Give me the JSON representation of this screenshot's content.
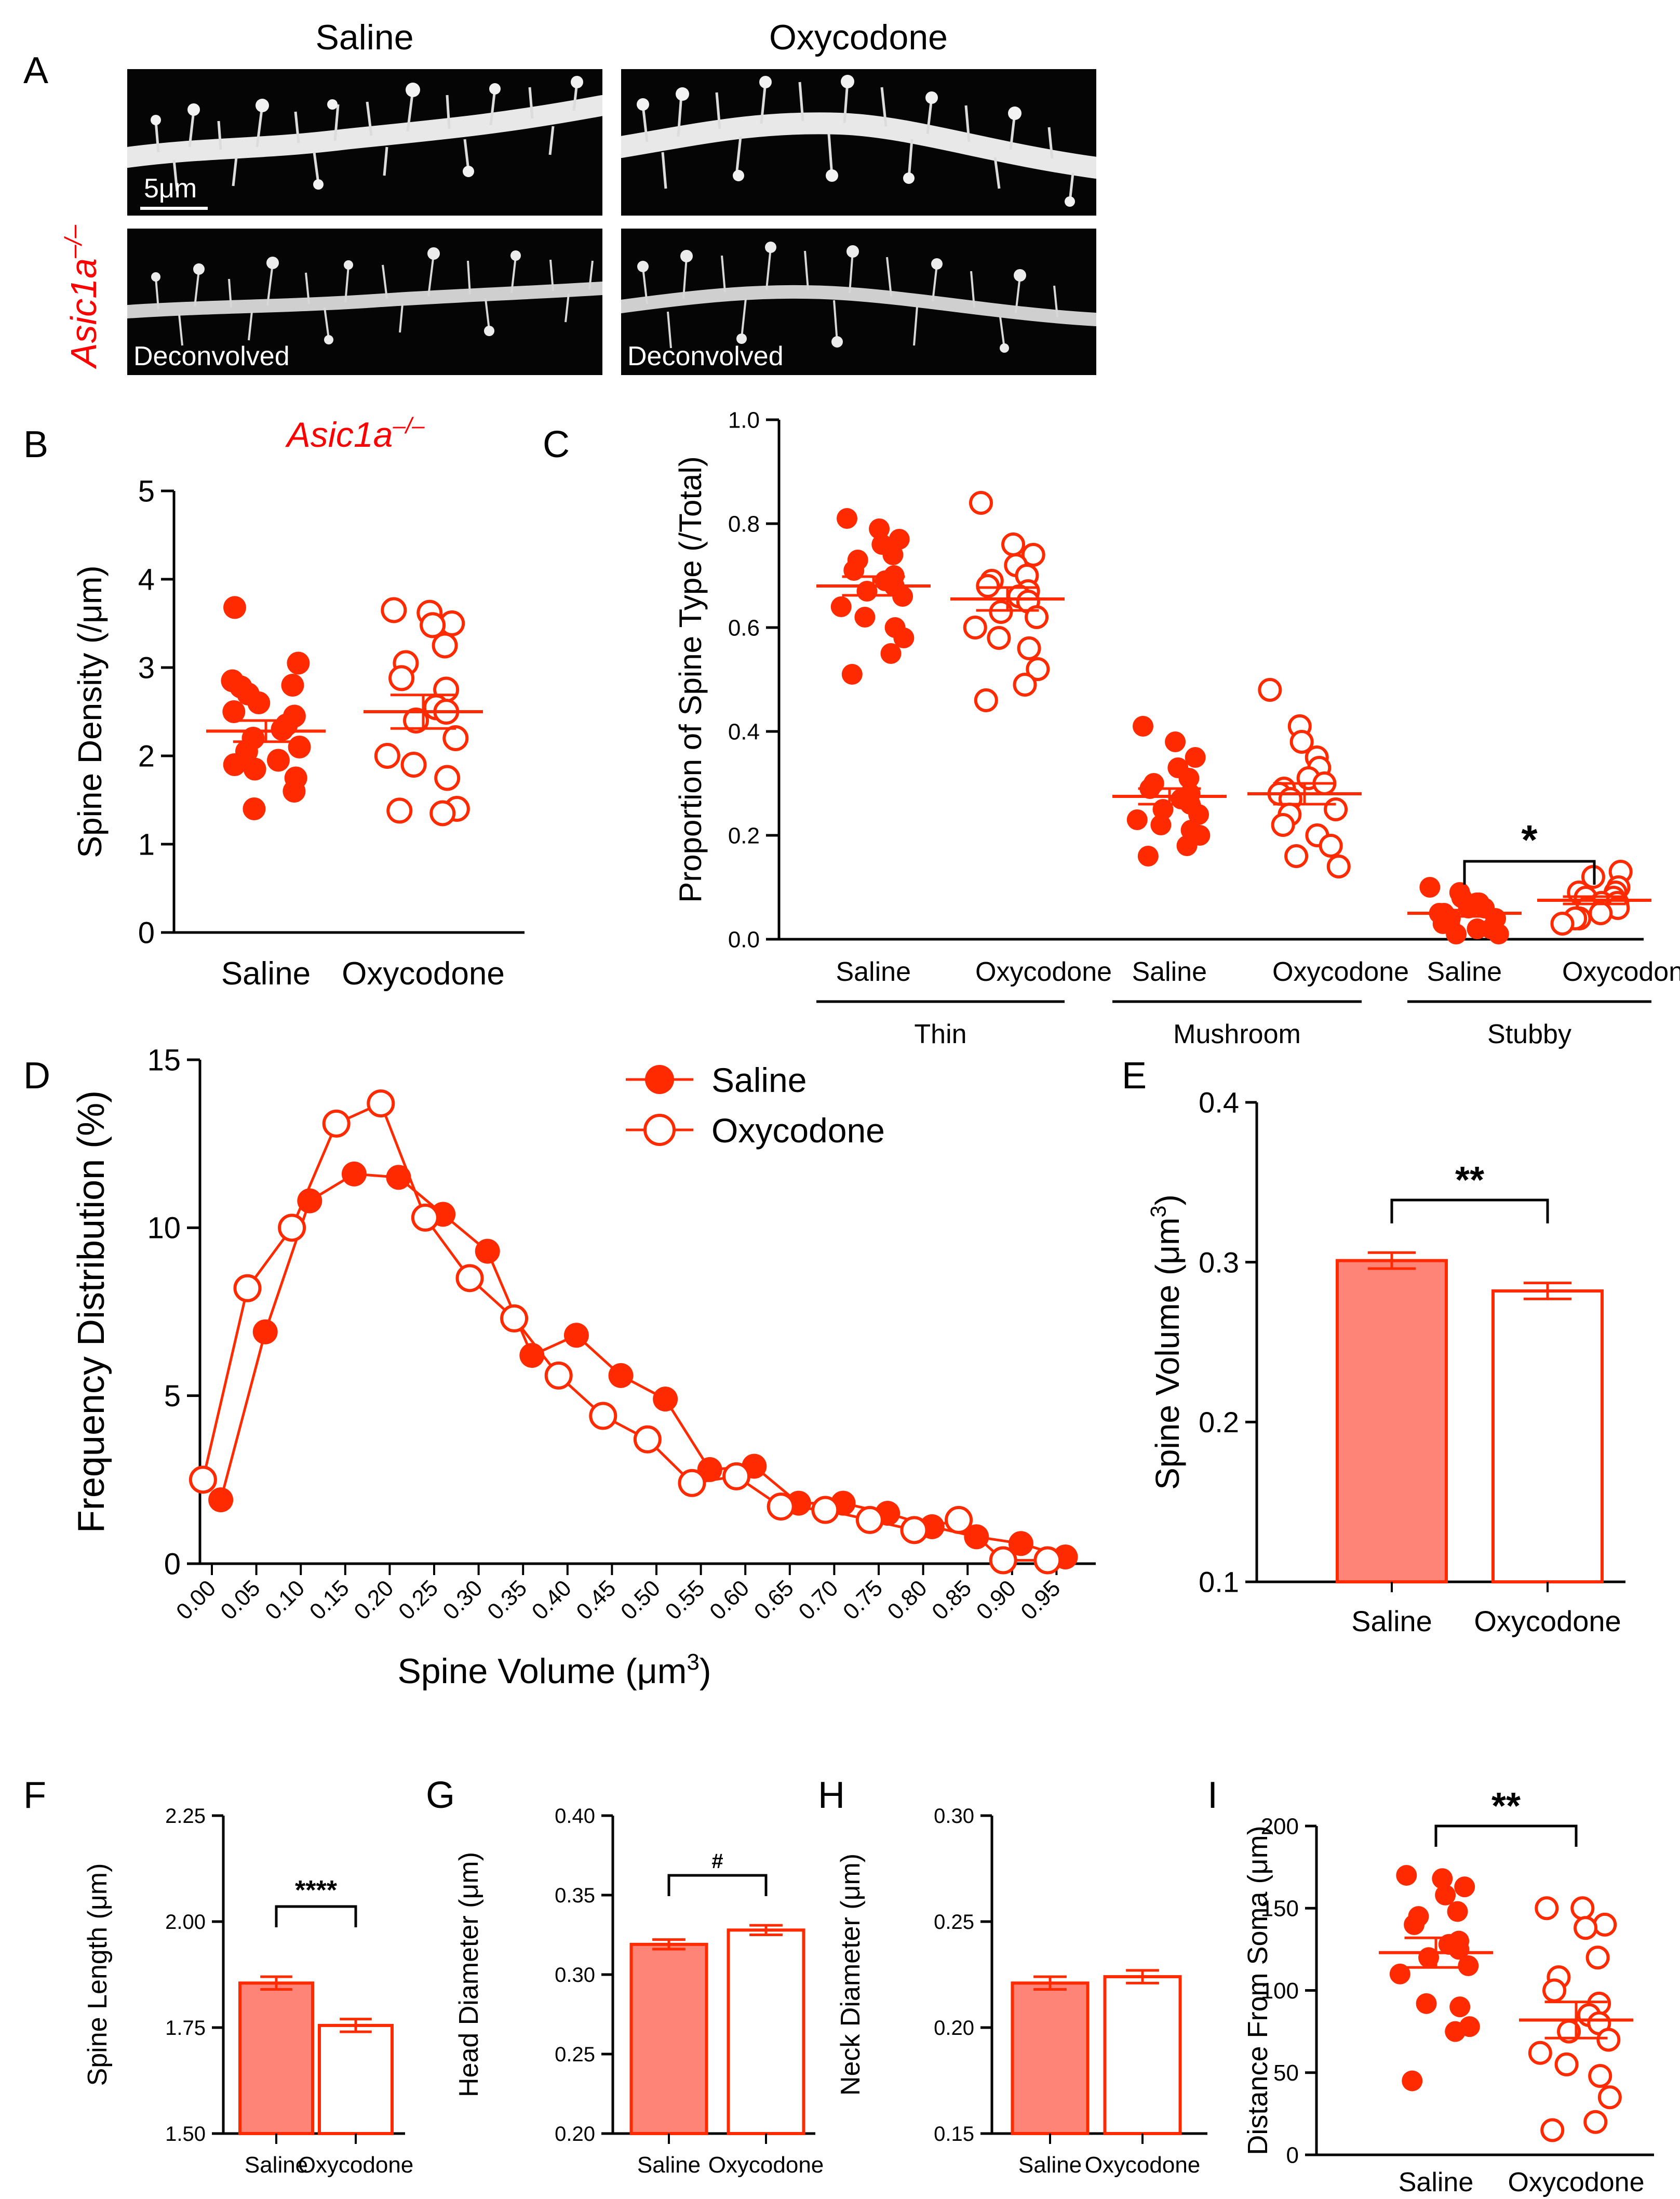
{
  "panel_letters": [
    "A",
    "B",
    "C",
    "D",
    "E",
    "F",
    "G",
    "H",
    "I"
  ],
  "colors": {
    "accent": "#ff2a00",
    "bar_fill": "#ff8478",
    "genotype": "#ff0000",
    "axis": "#000000"
  },
  "panelA": {
    "col1": "Saline",
    "col2": "Oxycodone",
    "genotype": "Asic1a",
    "genotype_sup": "–/–",
    "scale_bar": "5μm",
    "deconvolved": "Deconvolved"
  },
  "panelB_genotype": {
    "name": "Asic1a",
    "sup": "–/–"
  },
  "chart_data": [
    {
      "id": "B",
      "type": "scatter",
      "ylabel": "Spine Density (/μm)",
      "ylim": [
        0,
        5
      ],
      "yticks": [
        "0",
        "1",
        "2",
        "3",
        "4",
        "5"
      ],
      "categories": [
        "Saline",
        "Oxycodone"
      ],
      "series": [
        {
          "name": "Saline",
          "filled": true,
          "mean": 2.28,
          "sem": 0.12,
          "values": [
            3.68,
            3.05,
            2.85,
            2.8,
            2.78,
            2.7,
            2.6,
            2.5,
            2.45,
            2.35,
            2.3,
            2.2,
            2.1,
            2.05,
            1.95,
            1.9,
            1.85,
            1.75,
            1.6,
            1.4
          ]
        },
        {
          "name": "Oxycodone",
          "filled": false,
          "mean": 2.5,
          "sem": 0.19,
          "values": [
            3.65,
            3.62,
            3.5,
            3.48,
            3.25,
            3.05,
            2.88,
            2.75,
            2.55,
            2.5,
            2.4,
            2.2,
            2.0,
            1.9,
            1.75,
            1.4,
            1.35,
            1.38
          ]
        }
      ]
    },
    {
      "id": "C",
      "type": "scatter",
      "ylabel": "Proportion of Spine Type (/Total)",
      "ylim": [
        0,
        1
      ],
      "yticks": [
        "0.0",
        "0.2",
        "0.4",
        "0.6",
        "0.8",
        "1.0"
      ],
      "groups": [
        "Thin",
        "Mushroom",
        "Stubby"
      ],
      "categories": [
        "Saline",
        "Oxycodone",
        "Saline",
        "Oxycodone",
        "Saline",
        "Oxycodone"
      ],
      "series": [
        {
          "name": "Thin Saline",
          "filled": true,
          "mean": 0.68,
          "sem": 0.018,
          "values": [
            0.81,
            0.79,
            0.77,
            0.76,
            0.74,
            0.73,
            0.71,
            0.7,
            0.69,
            0.68,
            0.67,
            0.66,
            0.64,
            0.62,
            0.6,
            0.58,
            0.55,
            0.51
          ]
        },
        {
          "name": "Thin Oxycodone",
          "filled": false,
          "mean": 0.655,
          "sem": 0.022,
          "values": [
            0.84,
            0.76,
            0.74,
            0.72,
            0.7,
            0.69,
            0.68,
            0.67,
            0.66,
            0.65,
            0.63,
            0.62,
            0.6,
            0.58,
            0.56,
            0.52,
            0.49,
            0.46
          ]
        },
        {
          "name": "Mushroom Saline",
          "filled": true,
          "mean": 0.275,
          "sem": 0.015,
          "values": [
            0.41,
            0.38,
            0.35,
            0.33,
            0.31,
            0.3,
            0.29,
            0.28,
            0.27,
            0.26,
            0.25,
            0.24,
            0.23,
            0.22,
            0.21,
            0.2,
            0.18,
            0.16
          ]
        },
        {
          "name": "Mushroom Oxycodone",
          "filled": false,
          "mean": 0.28,
          "sem": 0.02,
          "values": [
            0.48,
            0.41,
            0.38,
            0.35,
            0.33,
            0.31,
            0.3,
            0.29,
            0.28,
            0.27,
            0.25,
            0.24,
            0.22,
            0.2,
            0.18,
            0.16,
            0.14
          ]
        },
        {
          "name": "Stubby Saline",
          "filled": true,
          "mean": 0.05,
          "sem": 0.006,
          "values": [
            0.1,
            0.09,
            0.08,
            0.07,
            0.07,
            0.06,
            0.06,
            0.05,
            0.05,
            0.04,
            0.04,
            0.03,
            0.03,
            0.02,
            0.02,
            0.01,
            0.01
          ]
        },
        {
          "name": "Stubby Oxycodone",
          "filled": false,
          "mean": 0.075,
          "sem": 0.007,
          "values": [
            0.13,
            0.12,
            0.1,
            0.09,
            0.09,
            0.08,
            0.08,
            0.07,
            0.07,
            0.06,
            0.06,
            0.05,
            0.04,
            0.04,
            0.03
          ]
        }
      ],
      "significance": {
        "between": [
          4,
          5
        ],
        "label": "*",
        "y": 0.15
      }
    },
    {
      "id": "D",
      "type": "line",
      "xlabel": "Spine Volume (μm",
      "xlabel_sup": "3",
      "xlabel_end": ")",
      "ylabel": "Frequency Distribution (%)",
      "ylim": [
        0,
        15
      ],
      "yticks": [
        "0",
        "5",
        "10",
        "15"
      ],
      "xticks": [
        "0.00",
        "0.05",
        "0.10",
        "0.15",
        "0.20",
        "0.25",
        "0.30",
        "0.35",
        "0.40",
        "0.45",
        "0.50",
        "0.55",
        "0.60",
        "0.65",
        "0.70",
        "0.75",
        "0.80",
        "0.85",
        "0.90",
        "0.95"
      ],
      "series": [
        {
          "name": "Saline",
          "filled": true,
          "x": [
            0.01,
            0.06,
            0.11,
            0.16,
            0.21,
            0.26,
            0.31,
            0.36,
            0.41,
            0.46,
            0.51,
            0.56,
            0.61,
            0.66,
            0.71,
            0.76,
            0.81,
            0.86,
            0.91,
            0.96
          ],
          "values": [
            1.9,
            6.9,
            10.8,
            11.6,
            11.5,
            10.4,
            9.3,
            6.2,
            6.8,
            5.6,
            4.9,
            2.8,
            2.9,
            1.8,
            1.8,
            1.5,
            1.1,
            0.8,
            0.6,
            0.2
          ]
        },
        {
          "name": "Oxycodone",
          "filled": false,
          "x": [
            -0.01,
            0.04,
            0.09,
            0.14,
            0.19,
            0.24,
            0.29,
            0.34,
            0.39,
            0.44,
            0.49,
            0.54,
            0.59,
            0.64,
            0.69,
            0.74,
            0.79,
            0.84,
            0.89,
            0.94
          ],
          "values": [
            2.5,
            8.2,
            10.0,
            13.1,
            13.7,
            10.3,
            8.5,
            7.3,
            5.6,
            4.4,
            3.7,
            2.4,
            2.6,
            1.7,
            1.6,
            1.3,
            1.0,
            1.3,
            0.1,
            0.1
          ]
        }
      ],
      "legend": [
        "Saline",
        "Oxycodone"
      ]
    },
    {
      "id": "E",
      "type": "bar",
      "ylabel": "Spine Volume (μm",
      "ylabel_sup": "3",
      "ylabel_end": ")",
      "ylim": [
        0.1,
        0.4
      ],
      "yticks": [
        "0.1",
        "0.2",
        "0.3",
        "0.4"
      ],
      "categories": [
        "Saline",
        "Oxycodone"
      ],
      "values": [
        0.301,
        0.282
      ],
      "errors": [
        0.005,
        0.005
      ],
      "significance": "**"
    },
    {
      "id": "F",
      "type": "bar",
      "ylabel": "Spine Length (μm)",
      "ylim": [
        1.5,
        2.25
      ],
      "yticks": [
        "1.50",
        "1.75",
        "2.00",
        "2.25"
      ],
      "categories": [
        "Saline",
        "Oxycodone"
      ],
      "values": [
        1.855,
        1.755
      ],
      "errors": [
        0.015,
        0.015
      ],
      "significance": "****"
    },
    {
      "id": "G",
      "type": "bar",
      "ylabel": "Head Diameter (μm)",
      "ylim": [
        0.2,
        0.4
      ],
      "yticks": [
        "0.20",
        "0.25",
        "0.30",
        "0.35",
        "0.40"
      ],
      "categories": [
        "Saline",
        "Oxycodone"
      ],
      "values": [
        0.319,
        0.328
      ],
      "errors": [
        0.003,
        0.003
      ],
      "significance": "#"
    },
    {
      "id": "H",
      "type": "bar",
      "ylabel": "Neck Diameter (μm)",
      "ylim": [
        0.15,
        0.3
      ],
      "yticks": [
        "0.15",
        "0.20",
        "0.25",
        "0.30"
      ],
      "categories": [
        "Saline",
        "Oxycodone"
      ],
      "values": [
        0.221,
        0.224
      ],
      "errors": [
        0.003,
        0.003
      ],
      "significance": ""
    },
    {
      "id": "I",
      "type": "scatter",
      "ylabel": "Distance From Soma (μm)",
      "ylim": [
        0,
        200
      ],
      "yticks": [
        "0",
        "50",
        "100",
        "150",
        "200"
      ],
      "categories": [
        "Saline",
        "Oxycodone"
      ],
      "series": [
        {
          "name": "Saline",
          "filled": true,
          "mean": 123,
          "sem": 9,
          "values": [
            170,
            168,
            163,
            158,
            148,
            145,
            140,
            130,
            128,
            125,
            120,
            115,
            110,
            92,
            90,
            78,
            75,
            45
          ]
        },
        {
          "name": "Oxycodone",
          "filled": false,
          "mean": 82,
          "sem": 11,
          "values": [
            150,
            150,
            140,
            138,
            120,
            108,
            100,
            92,
            85,
            80,
            75,
            70,
            62,
            55,
            48,
            35,
            20,
            15
          ]
        }
      ],
      "significance": "**"
    }
  ]
}
